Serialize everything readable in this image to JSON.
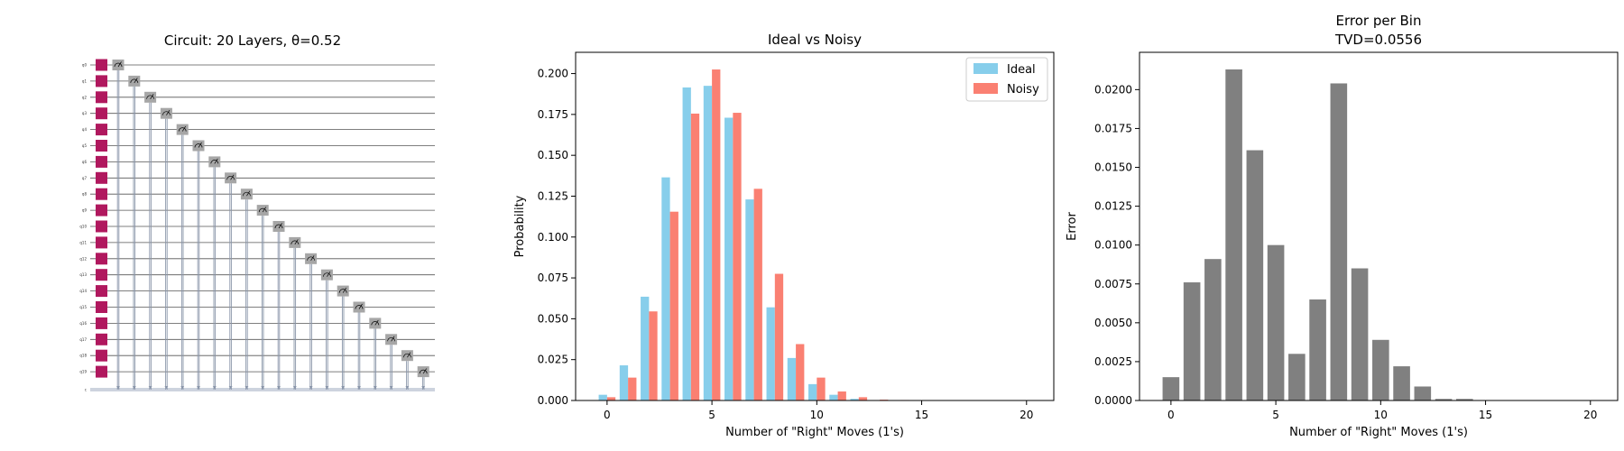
{
  "circuit": {
    "title": "Circuit: 20 Layers, θ=0.52",
    "qubit_labels": [
      "q0",
      "q1",
      "q2",
      "q3",
      "q4",
      "q5",
      "q6",
      "q7",
      "q8",
      "q9",
      "q10",
      "q11",
      "q12",
      "q13",
      "q14",
      "q15",
      "q16",
      "q17",
      "q18",
      "q19"
    ],
    "classical_label": "c",
    "gate_color": "#b0185e",
    "measure_color": "#a6a6a6",
    "wire_color": "#555555"
  },
  "chart_data": [
    {
      "type": "bar",
      "title": "Ideal vs Noisy",
      "xlabel": "Number of \"Right\" Moves (1's)",
      "ylabel": "Probability",
      "x": [
        0,
        1,
        2,
        3,
        4,
        5,
        6,
        7,
        8,
        9,
        10,
        11,
        12,
        13,
        14,
        15,
        16,
        17,
        18,
        19,
        20
      ],
      "xlim": [
        -1.5,
        21.3
      ],
      "ylim": [
        0,
        0.213
      ],
      "xticks": [
        0,
        5,
        10,
        15,
        20
      ],
      "yticks": [
        "0.000",
        "0.025",
        "0.050",
        "0.075",
        "0.100",
        "0.125",
        "0.150",
        "0.175",
        "0.200"
      ],
      "legend_position": "top-right",
      "series": [
        {
          "name": "Ideal",
          "color": "#87ceeb",
          "values": [
            0.0035,
            0.0215,
            0.0635,
            0.1365,
            0.1915,
            0.1925,
            0.173,
            0.123,
            0.057,
            0.026,
            0.01,
            0.0035,
            0.001,
            0.0002,
            0,
            0,
            0,
            0,
            0,
            0,
            0
          ]
        },
        {
          "name": "Noisy",
          "color": "#fa8072",
          "values": [
            0.002,
            0.014,
            0.0545,
            0.1155,
            0.1755,
            0.2025,
            0.176,
            0.1295,
            0.0775,
            0.0345,
            0.014,
            0.0055,
            0.002,
            0.0005,
            0.0003,
            0,
            0,
            0,
            0,
            0,
            0
          ]
        }
      ]
    },
    {
      "type": "bar",
      "title": "Error per Bin",
      "subtitle": "TVD=0.0556",
      "xlabel": "Number of \"Right\" Moves (1's)",
      "ylabel": "Error",
      "x": [
        0,
        1,
        2,
        3,
        4,
        5,
        6,
        7,
        8,
        9,
        10,
        11,
        12,
        13,
        14,
        15,
        16,
        17,
        18,
        19,
        20
      ],
      "xlim": [
        -1.5,
        21.3
      ],
      "ylim": [
        0,
        0.0224
      ],
      "xticks": [
        0,
        5,
        10,
        15,
        20
      ],
      "yticks": [
        "0.0000",
        "0.0025",
        "0.0050",
        "0.0075",
        "0.0100",
        "0.0125",
        "0.0150",
        "0.0175",
        "0.0200"
      ],
      "series": [
        {
          "color": "#808080",
          "values": [
            0.0015,
            0.0076,
            0.0091,
            0.0213,
            0.0161,
            0.01,
            0.003,
            0.0065,
            0.0204,
            0.0085,
            0.0039,
            0.0022,
            0.0009,
            0.0001,
            0.0001,
            0,
            0,
            0,
            0,
            0,
            0
          ]
        }
      ]
    }
  ]
}
